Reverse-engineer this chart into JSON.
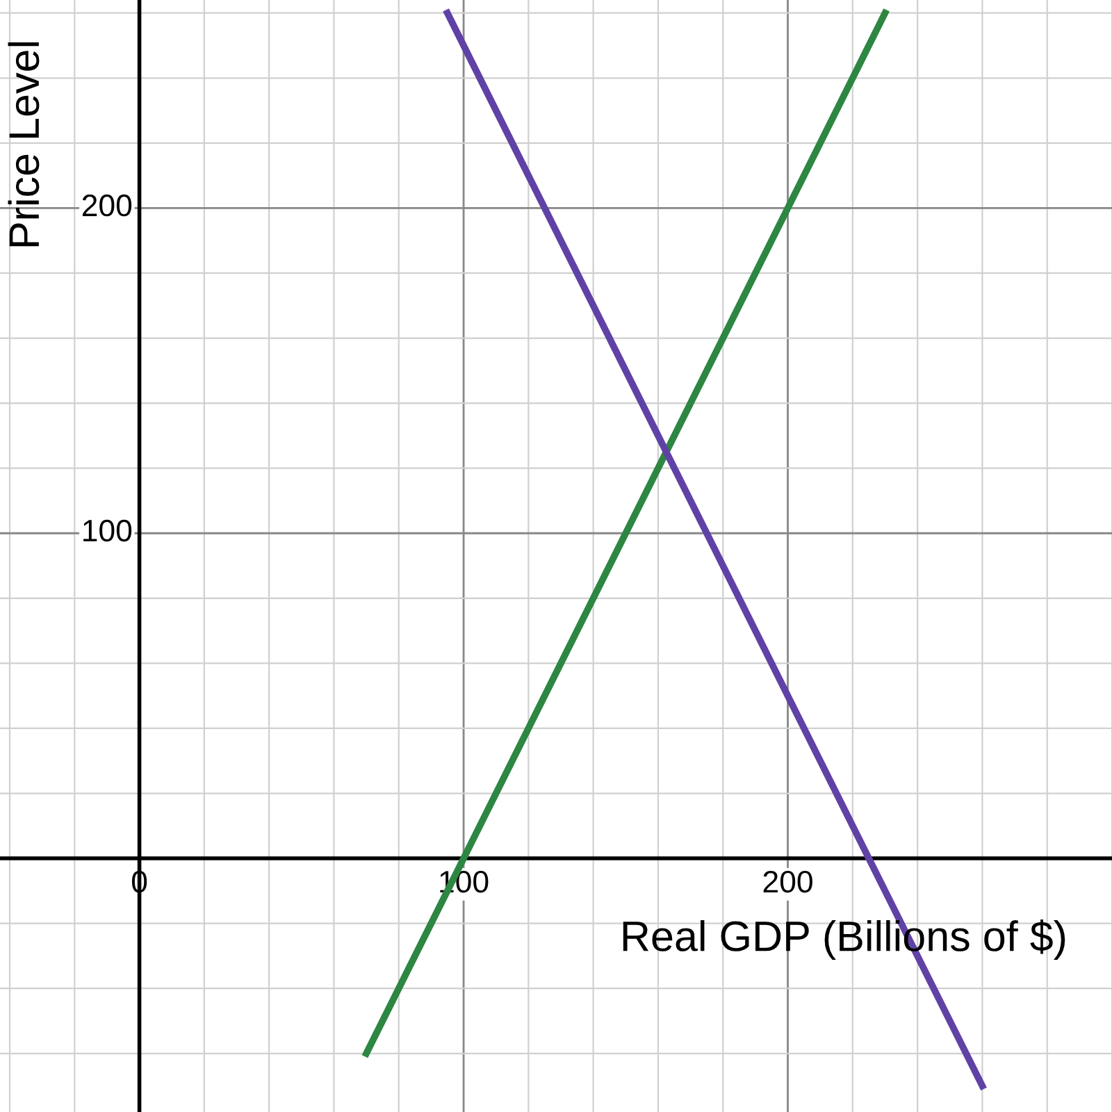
{
  "chart_data": {
    "type": "line",
    "xlabel": "Real GDP (Billions of $)",
    "ylabel": "Price Level",
    "xlim": [
      -43,
      300
    ],
    "ylim": [
      -78,
      264
    ],
    "xticks": [
      0,
      100,
      200
    ],
    "yticks": [
      {
        "value": 0,
        "label": null
      },
      100,
      200
    ],
    "grid": true,
    "marker": "none",
    "line_style": "solid",
    "series": [
      {
        "color": "#2d8641",
        "x": [
          70,
          100,
          200,
          230
        ],
        "values": [
          -60,
          0,
          200,
          260
        ]
      },
      {
        "color": "#6042a6",
        "x": [
          95,
          162.5,
          225,
          260
        ],
        "values": [
          260,
          125,
          0,
          -70
        ]
      }
    ]
  }
}
